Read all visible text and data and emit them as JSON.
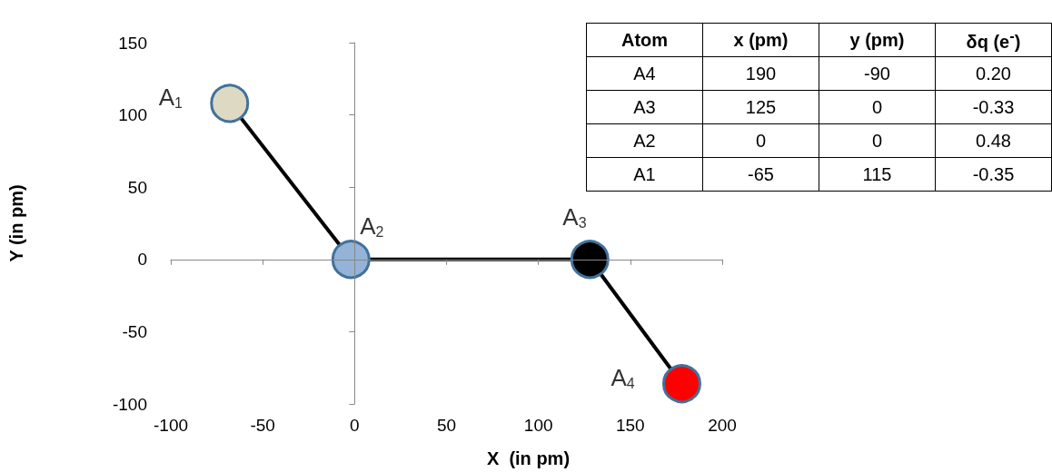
{
  "chart_data": [
    {
      "type": "line",
      "xlabel": "X  (in pm)",
      "ylabel": "Y (in pm)",
      "x": [
        -68,
        -2,
        128,
        178
      ],
      "values": [
        108,
        0,
        0,
        -86
      ],
      "color": "#000000",
      "colors": [
        "#ddd9c3",
        "#95b3d7",
        "#000000",
        "#ff0000"
      ],
      "marker": "circle",
      "line_style": "solid",
      "xlim": [
        -100,
        200
      ],
      "xticks": [
        -100,
        -50,
        0,
        50,
        100,
        150,
        200
      ],
      "ylim": [
        -100,
        150
      ],
      "yticks": [
        -100,
        -50,
        0,
        50,
        100,
        150
      ],
      "annotations": [
        {
          "text": "A$_{1}$",
          "x": -68,
          "y": 108
        },
        {
          "text": "A$_{2}$",
          "x": -2,
          "y": 0
        },
        {
          "text": "A$_{3}$",
          "x": 128,
          "y": 0
        },
        {
          "text": "A$_{4}$",
          "x": 178,
          "y": -86
        }
      ]
    },
    {
      "type": "other",
      "categories": [
        "Atom",
        "x (pm)",
        "y (pm)",
        "δq (e$^{-}$)"
      ],
      "y_categories": [
        "A4",
        "A3",
        "A2",
        "A1"
      ],
      "cell_labels": [
        [
          "190",
          "-90",
          "0.20"
        ],
        [
          "125",
          "0",
          "-0.33"
        ],
        [
          "0",
          "0",
          "0.48"
        ],
        [
          "-65",
          "115",
          "-0.35"
        ]
      ]
    }
  ]
}
